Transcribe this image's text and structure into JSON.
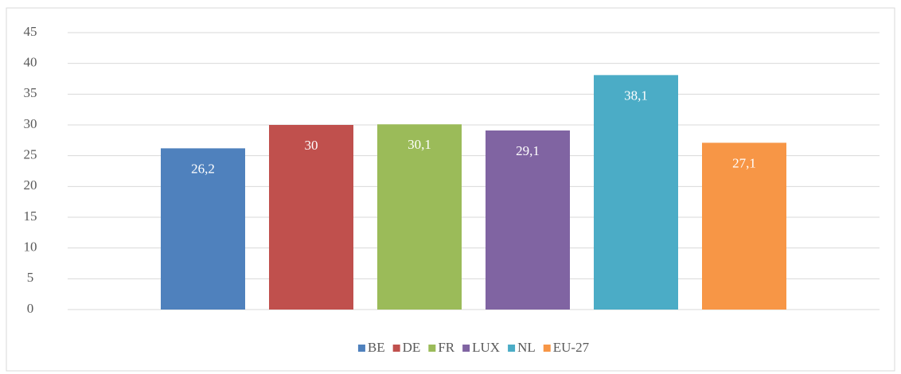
{
  "chart_data": {
    "type": "bar",
    "categories": [
      null
    ],
    "series": [
      {
        "name": "BE",
        "color": "#4f81bd",
        "values": [
          26.2
        ],
        "value_labels": [
          "26,2"
        ]
      },
      {
        "name": "DE",
        "color": "#c0504d",
        "values": [
          30
        ]
      },
      {
        "name": "FR",
        "color": "#9bbb59",
        "values": [
          30.1
        ],
        "value_labels": [
          "30,1"
        ]
      },
      {
        "name": "LUX",
        "color": "#8064a2",
        "values": [
          29.1
        ],
        "value_labels": [
          "29,1"
        ]
      },
      {
        "name": "NL",
        "color": "#4bacc6",
        "values": [
          38.1
        ],
        "value_labels": [
          "38,1"
        ]
      },
      {
        "name": "EU-27",
        "color": "#f79646",
        "values": [
          27.1
        ],
        "value_labels": [
          "27,1"
        ]
      }
    ],
    "ylim": [
      0,
      45
    ],
    "yticks": [
      0,
      5,
      10,
      15,
      20,
      25,
      30,
      35,
      40,
      45
    ],
    "grid": true,
    "legend": "bottom"
  }
}
